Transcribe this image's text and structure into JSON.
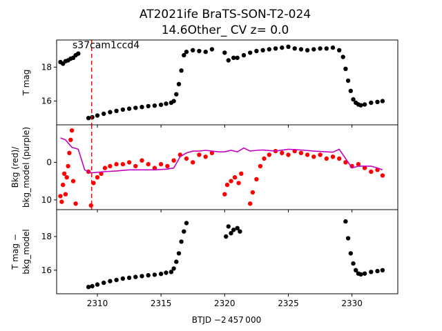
{
  "title_line1": "AT2021ife  BraTS-SON-T2-024",
  "title_line2": "14.6Other_ CV z= 0.0",
  "xlabel": "BTJD −2 457 000",
  "chart_data": [
    {
      "type": "scatter",
      "name": "panel-1",
      "ylabel": "T mag",
      "annotation": "s37cam1ccd4",
      "xlim": [
        2306.8,
        2333.6
      ],
      "ylim": [
        19.6,
        14.6
      ],
      "yticks": [
        16,
        18
      ],
      "vline_x": 2309.55,
      "series": [
        {
          "color": "#000000",
          "x": [
            2307.1,
            2307.3,
            2307.5,
            2307.7,
            2307.9,
            2308.1,
            2308.3,
            2308.5,
            2309.3,
            2309.6,
            2310.0,
            2310.5,
            2311.0,
            2311.5,
            2312.0,
            2312.5,
            2313.0,
            2313.5,
            2314.0,
            2314.5,
            2315.0,
            2315.4,
            2315.8,
            2316.0,
            2316.2,
            2316.4,
            2316.6,
            2316.8,
            2317.0,
            2317.5,
            2318.0,
            2318.5,
            2319.0,
            2320.0,
            2320.3,
            2320.7,
            2321.0,
            2321.5,
            2322.0,
            2322.5,
            2323.0,
            2323.5,
            2324.0,
            2324.5,
            2325.0,
            2325.5,
            2326.0,
            2326.5,
            2327.0,
            2327.5,
            2328.0,
            2328.5,
            2329.0,
            2329.3,
            2329.5,
            2329.7,
            2329.9,
            2330.1,
            2330.3,
            2330.5,
            2330.7,
            2331.0,
            2331.5,
            2332.0,
            2332.4
          ],
          "y": [
            18.3,
            18.2,
            18.35,
            18.4,
            18.5,
            18.55,
            18.7,
            18.8,
            15.0,
            15.05,
            15.15,
            15.25,
            15.35,
            15.42,
            15.5,
            15.55,
            15.6,
            15.65,
            15.7,
            15.73,
            15.78,
            15.85,
            15.9,
            16.0,
            16.4,
            17.0,
            17.8,
            18.7,
            18.9,
            19.0,
            18.95,
            18.9,
            19.05,
            18.85,
            18.4,
            18.55,
            18.55,
            18.7,
            18.85,
            18.95,
            19.0,
            19.05,
            19.1,
            19.15,
            19.2,
            19.1,
            19.05,
            19.0,
            19.05,
            19.1,
            19.1,
            19.15,
            19.0,
            18.6,
            17.9,
            17.2,
            16.6,
            16.1,
            15.9,
            15.8,
            15.75,
            15.8,
            15.9,
            15.95,
            16.0
          ]
        }
      ]
    },
    {
      "type": "scatter",
      "name": "panel-2",
      "ylabel_line1": "Bkg (red)/",
      "ylabel_line2": "bkg_model (purple)",
      "xlim": [
        2306.8,
        2333.6
      ],
      "ylim": [
        -10.0,
        12.6
      ],
      "yticks": [
        0,
        10
      ],
      "vline_x": 2309.55,
      "series": [
        {
          "color": "#ff0000",
          "x": [
            2307.1,
            2307.2,
            2307.3,
            2307.4,
            2307.5,
            2307.6,
            2307.7,
            2307.8,
            2307.9,
            2308.0,
            2308.1,
            2308.3,
            2309.3,
            2309.5,
            2309.7,
            2310.0,
            2310.3,
            2310.6,
            2311.0,
            2311.5,
            2312.0,
            2312.5,
            2313.0,
            2313.5,
            2314.0,
            2314.5,
            2315.0,
            2315.5,
            2316.0,
            2316.5,
            2317.0,
            2317.5,
            2318.0,
            2318.5,
            2319.0,
            2320.0,
            2320.2,
            2320.5,
            2320.8,
            2321.1,
            2321.3,
            2322.0,
            2322.2,
            2322.5,
            2322.8,
            2323.1,
            2323.5,
            2324.0,
            2324.5,
            2325.0,
            2325.5,
            2326.0,
            2326.5,
            2327.0,
            2327.5,
            2328.0,
            2328.5,
            2329.0,
            2329.5,
            2330.0,
            2330.5,
            2331.0,
            2331.5,
            2332.0,
            2332.4
          ],
          "y": [
            9.0,
            10.5,
            6.0,
            3.0,
            8.5,
            4.0,
            1.0,
            -2.5,
            -6.0,
            -8.5,
            5.0,
            11.0,
            2.5,
            11.5,
            5.5,
            4.0,
            3.0,
            1.5,
            1.0,
            0.5,
            0.5,
            0.0,
            1.0,
            -0.5,
            0.5,
            1.5,
            0.5,
            1.0,
            -0.5,
            -2.0,
            -1.0,
            0.0,
            -2.0,
            -1.5,
            -2.5,
            8.5,
            6.0,
            5.0,
            4.0,
            5.5,
            3.0,
            11.0,
            8.0,
            4.5,
            1.0,
            -1.0,
            -2.0,
            -3.0,
            -2.5,
            -2.0,
            -3.0,
            -2.5,
            -2.0,
            -1.5,
            -2.0,
            -1.0,
            -1.5,
            -1.0,
            0.0,
            1.0,
            0.5,
            1.5,
            2.5,
            2.0,
            3.5
          ]
        },
        {
          "color": "#c400c4",
          "x": [
            2307.1,
            2307.5,
            2308.0,
            2308.5,
            2309.0,
            2309.5,
            2310.5,
            2311.5,
            2312.5,
            2313.5,
            2314.5,
            2315.5,
            2316.0,
            2316.5,
            2317.0,
            2317.5,
            2318.0,
            2318.5,
            2319.0,
            2319.5,
            2320.0,
            2320.5,
            2321.0,
            2321.5,
            2322.0,
            2322.5,
            2323.0,
            2324.0,
            2325.0,
            2326.0,
            2327.0,
            2328.0,
            2328.5,
            2329.0,
            2329.5,
            2330.0,
            2330.5,
            2331.0,
            2331.5,
            2332.0,
            2332.4
          ],
          "y": [
            -6.5,
            -6.0,
            -4.0,
            -3.5,
            2.0,
            2.8,
            2.5,
            2.3,
            2.0,
            2.0,
            2.0,
            1.8,
            1.5,
            -1.5,
            -2.5,
            -3.0,
            -3.0,
            -3.2,
            -3.0,
            -2.8,
            -2.8,
            -3.2,
            -2.8,
            -3.8,
            -3.0,
            -3.2,
            -3.3,
            -3.0,
            -3.5,
            -3.3,
            -3.0,
            -2.8,
            -2.7,
            -3.5,
            -1.0,
            1.5,
            1.0,
            1.0,
            1.0,
            1.5,
            2.0
          ]
        }
      ]
    },
    {
      "type": "scatter",
      "name": "panel-3",
      "ylabel_line1": "T mag −",
      "ylabel_line2": "bkg_model",
      "xlim": [
        2306.8,
        2333.6
      ],
      "ylim": [
        19.6,
        14.6
      ],
      "yticks": [
        16,
        18
      ],
      "xticks": [
        2310,
        2315,
        2320,
        2325,
        2330
      ],
      "series": [
        {
          "color": "#000000",
          "x": [
            2309.3,
            2309.6,
            2310.0,
            2310.5,
            2311.0,
            2311.5,
            2312.0,
            2312.5,
            2313.0,
            2313.5,
            2314.0,
            2314.5,
            2315.0,
            2315.4,
            2315.8,
            2316.0,
            2316.2,
            2316.4,
            2316.6,
            2316.8,
            2317.0,
            2320.1,
            2320.3,
            2320.5,
            2320.7,
            2321.0,
            2321.2,
            2329.5,
            2329.7,
            2329.9,
            2330.1,
            2330.3,
            2330.5,
            2330.7,
            2331.0,
            2331.5,
            2332.0,
            2332.4
          ],
          "y": [
            15.0,
            15.05,
            15.15,
            15.25,
            15.35,
            15.42,
            15.5,
            15.55,
            15.6,
            15.65,
            15.7,
            15.73,
            15.78,
            15.85,
            15.9,
            16.1,
            16.5,
            17.0,
            17.7,
            18.3,
            18.8,
            18.0,
            18.6,
            18.2,
            18.4,
            18.5,
            18.3,
            18.9,
            17.9,
            17.0,
            16.4,
            16.0,
            15.8,
            15.75,
            15.8,
            15.9,
            15.95,
            16.0
          ]
        }
      ]
    }
  ]
}
